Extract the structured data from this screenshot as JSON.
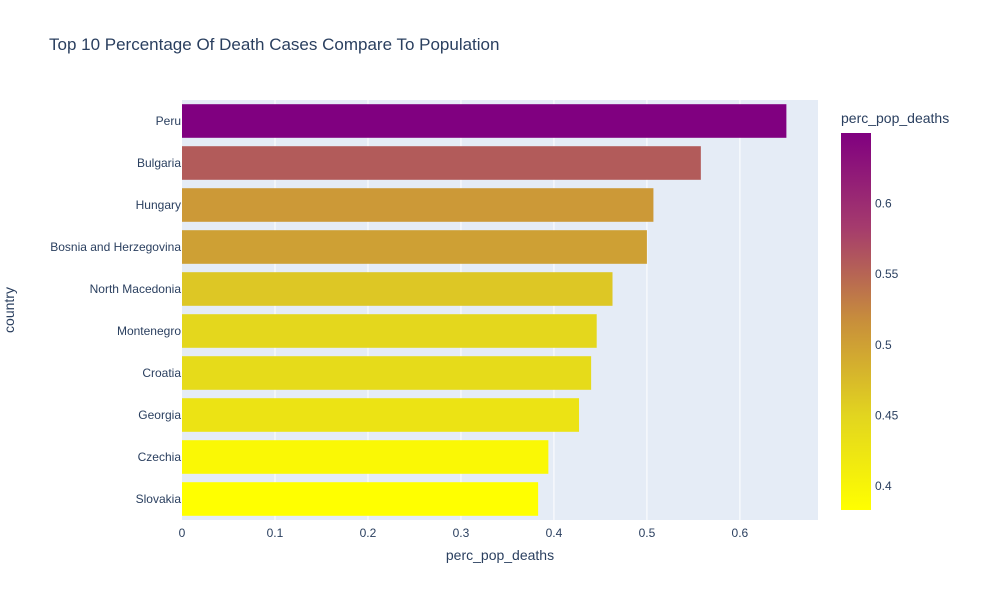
{
  "chart_data": {
    "type": "bar",
    "orientation": "horizontal",
    "title": "Top 10 Percentage Of Death Cases Compare To Population",
    "xlabel": "perc_pop_deaths",
    "ylabel": "country",
    "categories": [
      "Peru",
      "Bulgaria",
      "Hungary",
      "Bosnia and Herzegovina",
      "North Macedonia",
      "Montenegro",
      "Croatia",
      "Georgia",
      "Czechia",
      "Slovakia"
    ],
    "values": [
      0.65,
      0.558,
      0.507,
      0.5,
      0.463,
      0.446,
      0.44,
      0.427,
      0.394,
      0.383
    ],
    "xlim": [
      0,
      0.684
    ],
    "xticks": [
      0,
      0.1,
      0.2,
      0.3,
      0.4,
      0.5,
      0.6
    ],
    "xtick_labels": [
      "0",
      "0.1",
      "0.2",
      "0.3",
      "0.4",
      "0.5",
      "0.6"
    ],
    "grid": true,
    "colorbar": {
      "title": "perc_pop_deaths",
      "range": [
        0.383,
        0.65
      ],
      "ticks": [
        0.4,
        0.45,
        0.5,
        0.55,
        0.6
      ],
      "tick_labels": [
        "0.4",
        "0.45",
        "0.5",
        "0.55",
        "0.6"
      ],
      "colorscale": [
        "#ffff00",
        "#e2d51f",
        "#c88f3b",
        "#a53b6d",
        "#800080"
      ]
    },
    "plot_background": "#e5ecf6"
  }
}
